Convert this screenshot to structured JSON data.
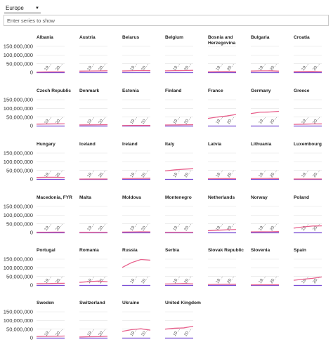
{
  "controls": {
    "region": "Europe",
    "search_placeholder": "Enter series to show"
  },
  "colors": {
    "series_a": "#e8608c",
    "series_b": "#7b4fd6",
    "grid": "#e2e2e2"
  },
  "chart_data": {
    "type": "line",
    "layout": "small-multiples",
    "title": "",
    "x_tick_labels": [
      "19…",
      "20…"
    ],
    "y_tick_labels": [
      "150,000,000",
      "100,000,000",
      "50,000,000",
      "0"
    ],
    "ylim": [
      0,
      150000000
    ],
    "x_range": [
      1950,
      2020
    ],
    "series_colors": [
      "#e8608c",
      "#7b4fd6"
    ],
    "panels": [
      {
        "name": "Albania",
        "a": [
          1.5,
          2.3,
          2.9,
          2.9
        ],
        "b": [
          0,
          0,
          0,
          0
        ]
      },
      {
        "name": "Austria",
        "a": [
          6.9,
          7.5,
          8.0,
          8.9
        ],
        "b": [
          0,
          0,
          0,
          0
        ]
      },
      {
        "name": "Belarus",
        "a": [
          7.8,
          9.0,
          10.2,
          9.4
        ],
        "b": [
          0,
          0,
          0,
          0
        ]
      },
      {
        "name": "Belgium",
        "a": [
          8.6,
          9.7,
          10.0,
          11.5
        ],
        "b": [
          0,
          0,
          0,
          0
        ]
      },
      {
        "name": "Bosnia and Herzegovina",
        "a": [
          2.7,
          3.7,
          4.5,
          3.3
        ],
        "b": [
          0,
          0,
          0,
          0
        ]
      },
      {
        "name": "Bulgaria",
        "a": [
          7.3,
          8.5,
          8.8,
          6.9
        ],
        "b": [
          0,
          0,
          0,
          0
        ]
      },
      {
        "name": "Croatia",
        "a": [
          3.9,
          4.4,
          4.8,
          4.0
        ],
        "b": [
          0,
          0,
          0,
          0
        ]
      },
      {
        "name": "Czech Republic",
        "a": [
          8.9,
          9.8,
          10.3,
          10.7
        ],
        "b": [
          0,
          0,
          0,
          0
        ]
      },
      {
        "name": "Denmark",
        "a": [
          4.3,
          4.9,
          5.1,
          5.8
        ],
        "b": [
          0,
          0,
          0,
          0
        ]
      },
      {
        "name": "Estonia",
        "a": [
          1.1,
          1.4,
          1.6,
          1.3
        ],
        "b": [
          0,
          0,
          0,
          0
        ]
      },
      {
        "name": "Finland",
        "a": [
          4.0,
          4.6,
          5.0,
          5.5
        ],
        "b": [
          0,
          0,
          0,
          0
        ]
      },
      {
        "name": "France",
        "a": [
          42,
          50,
          56,
          65
        ],
        "b": [
          0,
          0,
          0,
          0
        ]
      },
      {
        "name": "Germany",
        "a": [
          70,
          78,
          79,
          83
        ],
        "b": [
          0,
          0,
          0,
          0
        ]
      },
      {
        "name": "Greece",
        "a": [
          7.6,
          8.8,
          10.2,
          10.4
        ],
        "b": [
          0,
          0,
          0,
          0
        ]
      },
      {
        "name": "Hungary",
        "a": [
          9.3,
          10.3,
          10.4,
          9.7
        ],
        "b": [
          0,
          0,
          0,
          0
        ]
      },
      {
        "name": "Iceland",
        "a": [
          0.14,
          0.2,
          0.26,
          0.36
        ],
        "b": [
          0,
          0,
          0,
          0
        ]
      },
      {
        "name": "Ireland",
        "a": [
          2.9,
          3.0,
          3.5,
          4.9
        ],
        "b": [
          0,
          0,
          0,
          0
        ]
      },
      {
        "name": "Italy",
        "a": [
          47,
          53,
          57,
          60
        ],
        "b": [
          0,
          0,
          0,
          0
        ]
      },
      {
        "name": "Latvia",
        "a": [
          1.9,
          2.4,
          2.7,
          1.9
        ],
        "b": [
          0,
          0,
          0,
          0
        ]
      },
      {
        "name": "Lithuania",
        "a": [
          2.6,
          3.1,
          3.7,
          2.8
        ],
        "b": [
          0,
          0,
          0,
          0
        ]
      },
      {
        "name": "Luxembourg",
        "a": [
          0.3,
          0.34,
          0.38,
          0.63
        ],
        "b": [
          0,
          0,
          0,
          0
        ]
      },
      {
        "name": "Macedonia, FYR",
        "a": [
          1.2,
          1.6,
          1.9,
          2.1
        ],
        "b": [
          0,
          0,
          0,
          0
        ]
      },
      {
        "name": "Malta",
        "a": [
          0.3,
          0.31,
          0.36,
          0.5
        ],
        "b": [
          0,
          0,
          0,
          0
        ]
      },
      {
        "name": "Moldova",
        "a": [
          2.3,
          3.0,
          4.0,
          3.5
        ],
        "b": [
          0,
          0,
          0,
          0
        ]
      },
      {
        "name": "Montenegro",
        "a": [
          0.4,
          0.5,
          0.6,
          0.62
        ],
        "b": [
          0,
          0,
          0,
          0
        ]
      },
      {
        "name": "Netherlands",
        "a": [
          10,
          13,
          15,
          17.3
        ],
        "b": [
          0,
          0,
          0,
          0
        ]
      },
      {
        "name": "Norway",
        "a": [
          3.3,
          3.9,
          4.2,
          5.4
        ],
        "b": [
          0,
          0,
          0,
          0
        ]
      },
      {
        "name": "Poland",
        "a": [
          25,
          32,
          37,
          38
        ],
        "b": [
          0,
          0,
          0,
          0
        ]
      },
      {
        "name": "Portugal",
        "a": [
          8.4,
          8.7,
          9.9,
          10.3
        ],
        "b": [
          0,
          0,
          0,
          0
        ]
      },
      {
        "name": "Romania",
        "a": [
          16,
          20,
          23,
          19.4
        ],
        "b": [
          0,
          0,
          0,
          0
        ]
      },
      {
        "name": "Russia",
        "a": [
          102,
          130,
          148,
          144
        ],
        "b": [
          0,
          0,
          0,
          0
        ]
      },
      {
        "name": "Serbia",
        "a": [
          6.7,
          7.7,
          8.9,
          7.0
        ],
        "b": [
          0,
          0,
          0,
          0
        ]
      },
      {
        "name": "Slovak Republic",
        "a": [
          3.5,
          4.5,
          5.3,
          5.4
        ],
        "b": [
          0,
          0,
          0,
          0
        ]
      },
      {
        "name": "Slovenia",
        "a": [
          1.5,
          1.7,
          2.0,
          2.1
        ],
        "b": [
          0,
          0,
          0,
          0
        ]
      },
      {
        "name": "Spain",
        "a": [
          28,
          34,
          39,
          47
        ],
        "b": [
          0,
          0,
          0,
          0
        ]
      },
      {
        "name": "Sweden",
        "a": [
          7.0,
          8.0,
          8.6,
          10.2
        ],
        "b": [
          0,
          0,
          0,
          0
        ]
      },
      {
        "name": "Switzerland",
        "a": [
          4.7,
          6.2,
          6.7,
          8.5
        ],
        "b": [
          0,
          0,
          0,
          0
        ]
      },
      {
        "name": "Ukraine",
        "a": [
          37,
          47,
          52,
          44
        ],
        "b": [
          0,
          0,
          0,
          0
        ]
      },
      {
        "name": "United Kingdom",
        "a": [
          50,
          55,
          57,
          67
        ],
        "b": [
          0,
          0,
          0,
          0
        ]
      }
    ]
  }
}
